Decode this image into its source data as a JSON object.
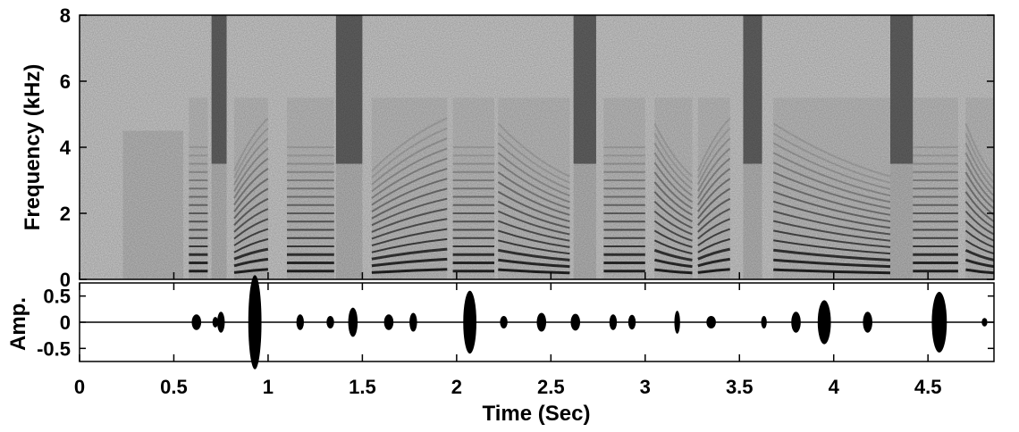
{
  "chart_data": [
    {
      "type": "heatmap",
      "panel": "spectrogram",
      "ylabel": "Frequency (kHz)",
      "ylim": [
        0,
        8
      ],
      "xlim": [
        0,
        4.85
      ],
      "y_ticks": [
        "0",
        "2",
        "4",
        "6",
        "8"
      ],
      "y_tick_values": [
        0,
        2,
        4,
        6,
        8
      ],
      "colormap": "grayscale",
      "segments": [
        {
          "start": 0.23,
          "end": 0.55,
          "kind": "noise"
        },
        {
          "start": 0.58,
          "end": 0.68,
          "kind": "voiced"
        },
        {
          "start": 0.7,
          "end": 0.78,
          "kind": "fricative"
        },
        {
          "start": 0.82,
          "end": 1.0,
          "kind": "voiced"
        },
        {
          "start": 1.1,
          "end": 1.35,
          "kind": "voiced"
        },
        {
          "start": 1.36,
          "end": 1.5,
          "kind": "fricative"
        },
        {
          "start": 1.55,
          "end": 1.95,
          "kind": "voiced"
        },
        {
          "start": 1.98,
          "end": 2.2,
          "kind": "voiced"
        },
        {
          "start": 2.22,
          "end": 2.6,
          "kind": "voiced"
        },
        {
          "start": 2.62,
          "end": 2.74,
          "kind": "fricative"
        },
        {
          "start": 2.78,
          "end": 3.0,
          "kind": "voiced"
        },
        {
          "start": 3.05,
          "end": 3.25,
          "kind": "voiced"
        },
        {
          "start": 3.28,
          "end": 3.45,
          "kind": "voiced"
        },
        {
          "start": 3.52,
          "end": 3.62,
          "kind": "fricative"
        },
        {
          "start": 3.68,
          "end": 4.3,
          "kind": "voiced"
        },
        {
          "start": 4.3,
          "end": 4.42,
          "kind": "fricative"
        },
        {
          "start": 4.42,
          "end": 4.66,
          "kind": "voiced"
        },
        {
          "start": 4.7,
          "end": 4.85,
          "kind": "voiced"
        }
      ]
    },
    {
      "type": "line",
      "panel": "waveform",
      "ylabel": "Amp.",
      "xlabel": "Time (Sec)",
      "ylim": [
        -0.75,
        0.75
      ],
      "xlim": [
        0,
        4.85
      ],
      "y_ticks": [
        "0.5",
        "0",
        "-0.5"
      ],
      "y_tick_values": [
        0.5,
        0,
        -0.5
      ],
      "x_ticks": [
        "0",
        "0.5",
        "1",
        "1.5",
        "2",
        "2.5",
        "3",
        "3.5",
        "4",
        "4.5"
      ],
      "x_tick_values": [
        0,
        0.5,
        1,
        1.5,
        2,
        2.5,
        3,
        3.5,
        4,
        4.5
      ],
      "envelope": [
        {
          "t": 0.62,
          "w": 0.05,
          "a": 0.15
        },
        {
          "t": 0.72,
          "w": 0.03,
          "a": 0.1
        },
        {
          "t": 0.75,
          "w": 0.04,
          "a": 0.2
        },
        {
          "t": 0.93,
          "w": 0.07,
          "a": 0.9
        },
        {
          "t": 1.17,
          "w": 0.04,
          "a": 0.15
        },
        {
          "t": 1.33,
          "w": 0.04,
          "a": 0.12
        },
        {
          "t": 1.45,
          "w": 0.05,
          "a": 0.28
        },
        {
          "t": 1.64,
          "w": 0.05,
          "a": 0.15
        },
        {
          "t": 1.77,
          "w": 0.04,
          "a": 0.18
        },
        {
          "t": 2.07,
          "w": 0.07,
          "a": 0.6
        },
        {
          "t": 2.25,
          "w": 0.04,
          "a": 0.12
        },
        {
          "t": 2.45,
          "w": 0.05,
          "a": 0.18
        },
        {
          "t": 2.63,
          "w": 0.05,
          "a": 0.16
        },
        {
          "t": 2.83,
          "w": 0.04,
          "a": 0.15
        },
        {
          "t": 2.93,
          "w": 0.04,
          "a": 0.14
        },
        {
          "t": 3.17,
          "w": 0.03,
          "a": 0.22
        },
        {
          "t": 3.35,
          "w": 0.05,
          "a": 0.12
        },
        {
          "t": 3.63,
          "w": 0.03,
          "a": 0.12
        },
        {
          "t": 3.8,
          "w": 0.05,
          "a": 0.2
        },
        {
          "t": 3.95,
          "w": 0.07,
          "a": 0.42
        },
        {
          "t": 4.18,
          "w": 0.05,
          "a": 0.2
        },
        {
          "t": 4.56,
          "w": 0.08,
          "a": 0.58
        },
        {
          "t": 4.8,
          "w": 0.03,
          "a": 0.08
        }
      ]
    }
  ]
}
